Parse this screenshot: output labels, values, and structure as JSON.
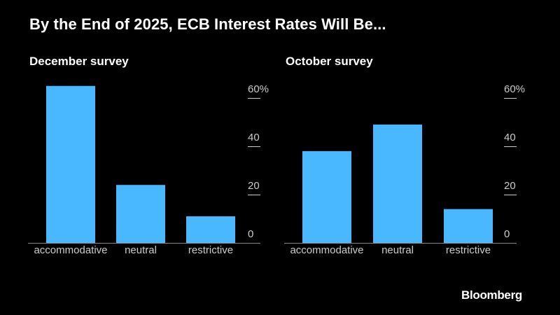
{
  "title": "By the End of 2025, ECB Interest Rates Will Be...",
  "source": "Bloomberg",
  "colors": {
    "background": "#000000",
    "bar": "#4ab8ff",
    "text": "#ffffff",
    "axis_text": "#cccccc",
    "baseline": "#888888"
  },
  "chart_data": [
    {
      "type": "bar",
      "title": "December survey",
      "categories": [
        "accommodative",
        "neutral",
        "restrictive"
      ],
      "values": [
        65,
        24,
        11
      ],
      "ylim": [
        0,
        60
      ],
      "yticks": [
        0,
        20,
        40,
        60
      ],
      "ytick_labels": [
        "0",
        "20",
        "40",
        "60%"
      ],
      "grid": false,
      "y_axis_position": "right"
    },
    {
      "type": "bar",
      "title": "October survey",
      "categories": [
        "accommodative",
        "neutral",
        "restrictive"
      ],
      "values": [
        38,
        49,
        14
      ],
      "ylim": [
        0,
        60
      ],
      "yticks": [
        0,
        20,
        40,
        60
      ],
      "ytick_labels": [
        "0",
        "20",
        "40",
        "60%"
      ],
      "grid": false,
      "y_axis_position": "right"
    }
  ]
}
